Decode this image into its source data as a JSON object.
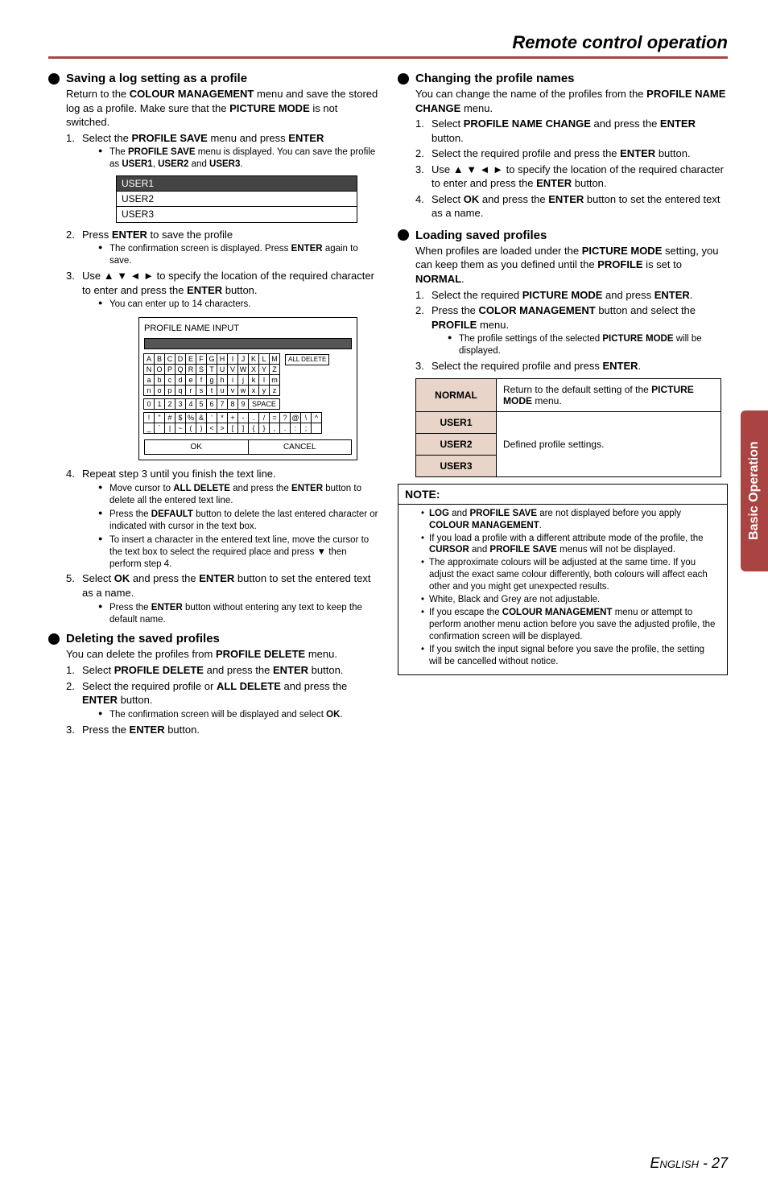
{
  "page_title": "Remote control operation",
  "side_tab": "Basic Operation",
  "footer": {
    "label": "English",
    "page_sep": " - ",
    "page_num": "27"
  },
  "left": {
    "h1": "Saving a log setting as a profile",
    "h1_sub": "Return to the <b>COLOUR MANAGEMENT</b> menu and save the stored log as a profile. Make sure that the <b>PICTURE MODE</b> is not switched.",
    "steps1": [
      "Select the <b>PROFILE SAVE</b> menu and press <b>ENTER</b>",
      "Press <b>ENTER</b> to save the profile",
      "Use ▲ ▼ ◄ ► to specify the location of the required character to enter and press the <b>ENTER</b> button.",
      "Repeat step 3 until you finish the text line.",
      "Select <b>OK</b> and press the <b>ENTER</b> button to set the entered text as a name."
    ],
    "steps1_sub1": "The <b>PROFILE SAVE</b> menu is displayed. You can save the profile as <b>USER1</b>, <b>USER2</b> and <b>USER3</b>.",
    "profile_rows": [
      "USER1",
      "USER2",
      "USER3"
    ],
    "steps1_sub2": "The confirmation screen is displayed. Press <b>ENTER</b> again to save.",
    "steps1_sub3": "You can enter up to 14 characters.",
    "char_title": "PROFILE NAME INPUT",
    "char_rows": [
      [
        "A",
        "B",
        "C",
        "D",
        "E",
        "F",
        "G",
        "H",
        "I",
        "J",
        "K",
        "L",
        "M"
      ],
      [
        "N",
        "O",
        "P",
        "Q",
        "R",
        "S",
        "T",
        "U",
        "V",
        "W",
        "X",
        "Y",
        "Z"
      ],
      [
        "a",
        "b",
        "c",
        "d",
        "e",
        "f",
        "g",
        "h",
        "i",
        "j",
        "k",
        "l",
        "m"
      ],
      [
        "n",
        "o",
        "p",
        "q",
        "r",
        "s",
        "t",
        "u",
        "v",
        "w",
        "x",
        "y",
        "z"
      ]
    ],
    "char_num_row": [
      "0",
      "1",
      "2",
      "3",
      "4",
      "5",
      "6",
      "7",
      "8",
      "9"
    ],
    "space_label": "SPACE",
    "char_sym_rows": [
      [
        "!",
        "\"",
        "#",
        "$",
        "%",
        "&",
        "'",
        "*",
        "+",
        "-",
        ".",
        "/",
        "=",
        "?",
        "@",
        "\\",
        "^"
      ],
      [
        "_",
        "`",
        "|",
        "~",
        "(",
        ")",
        "<",
        ">",
        "[",
        "]",
        "{",
        "}",
        ",",
        ".",
        ":",
        ";",
        " "
      ]
    ],
    "all_delete": "ALL DELETE",
    "ok_label": "OK",
    "cancel_label": "CANCEL",
    "steps4_subs": [
      "Move cursor to <b>ALL DELETE</b> and press the <b>ENTER</b> button to delete all the entered text line.",
      "Press the <b>DEFAULT</b> button to delete the last entered character or indicated with cursor in the text box.",
      "To insert a character in the entered text line, move the cursor to the text box to select the required place and press ▼ then perform step 4."
    ],
    "steps5_sub": "Press the <b>ENTER</b> button without entering any text to keep the default name.",
    "h2": "Deleting the saved profiles",
    "h2_sub": "You can delete the profiles from <b>PROFILE DELETE</b> menu.",
    "steps2": [
      "Select <b>PROFILE DELETE</b> and press the <b>ENTER</b> button.",
      "Select the required profile or <b>ALL DELETE</b> and press the <b>ENTER</b> button.",
      "Press the <b>ENTER</b> button."
    ],
    "steps2_sub": "The confirmation screen will be displayed and select <b>OK</b>."
  },
  "right": {
    "h1": "Changing the profile names",
    "h1_sub": "You can change the name of the profiles from the <b>PROFILE NAME CHANGE</b> menu.",
    "steps1": [
      "Select <b>PROFILE NAME CHANGE</b> and press the <b>ENTER</b> button.",
      "Select the required profile and press the <b>ENTER</b> button.",
      "Use ▲ ▼ ◄ ► to specify the location of the required character to enter and press the <b>ENTER</b> button.",
      "Select <b>OK</b> and press the <b>ENTER</b> button to set the entered text as a name."
    ],
    "h2": "Loading saved profiles",
    "h2_sub": "When profiles are loaded under the <b>PICTURE MODE</b> setting, you can keep them as you defined until the <b>PROFILE</b> is set to <b>NORMAL</b>.",
    "steps2": [
      "Select the required <b>PICTURE MODE</b> and press <b>ENTER</b>.",
      "Press the <b>COLOR MANAGEMENT</b> button and select the <b>PROFILE</b> menu.",
      "Select the required profile and press <b>ENTER</b>."
    ],
    "steps2_sub": "The profile settings of the selected <b>PICTURE MODE</b> will be displayed.",
    "def_table": {
      "rows": [
        {
          "label": "NORMAL",
          "desc": "Return to the default setting of the <b>PICTURE MODE</b> menu."
        },
        {
          "label": "USER1",
          "desc_rowspan_start": true
        },
        {
          "label": "USER2",
          "desc": "Defined profile settings."
        },
        {
          "label": "USER3"
        }
      ]
    },
    "note_title": "NOTE:",
    "notes": [
      "<b>LOG</b> and <b>PROFILE SAVE</b> are not displayed before you apply <b>COLOUR MANAGEMENT</b>.",
      "If you load a profile with a different attribute mode of the profile, the <b>CURSOR</b> and <b>PROFILE SAVE</b> menus will not be displayed.",
      "The approximate colours will be adjusted at the same time. If you adjust the exact same colour differently, both colours will affect each other and you might get unexpected results.",
      "White, Black and Grey are not adjustable.",
      "If you escape the <b>COLOUR MANAGEMENT</b> menu or attempt to perform another menu action before you save the adjusted profile, the confirmation screen will be displayed.",
      "If you switch the input signal before you save the profile, the setting will be cancelled without notice."
    ]
  }
}
